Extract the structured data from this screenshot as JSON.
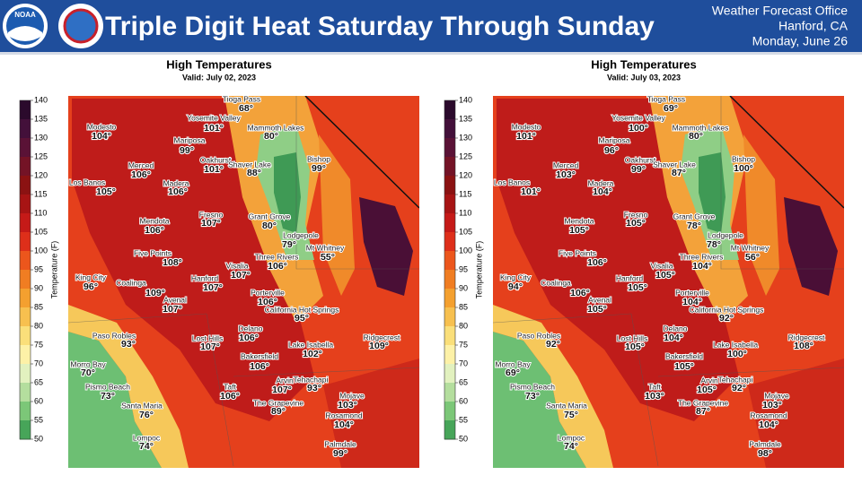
{
  "header": {
    "title": "Triple Digit Heat Saturday Through Sunday",
    "logo_text": "NOAA",
    "office": [
      "Weather Forecast Office",
      "Hanford, CA",
      "Monday, June 26"
    ]
  },
  "panels": [
    {
      "title": "High Temperatures",
      "valid": "Valid: July 02, 2023",
      "colorbar": {
        "label": "Temperature (F)",
        "ticks": [
          140,
          135,
          130,
          125,
          120,
          115,
          110,
          105,
          100,
          95,
          90,
          85,
          80,
          75,
          70,
          65,
          60,
          55,
          50
        ]
      },
      "cities": [
        {
          "name": "Tioga Pass",
          "temp": "68°"
        },
        {
          "name": "Modesto",
          "temp": "104°"
        },
        {
          "name": "Yosemite Valley",
          "temp": "101°"
        },
        {
          "name": "Mammoth Lakes",
          "temp": "80°"
        },
        {
          "name": "Mariposa",
          "temp": "99°"
        },
        {
          "name": "Oakhurst",
          "temp": "101°"
        },
        {
          "name": "Shaver Lake",
          "temp": "88°"
        },
        {
          "name": "Bishop",
          "temp": "99°"
        },
        {
          "name": "Merced",
          "temp": "106°"
        },
        {
          "name": "Los Banos",
          "temp": "105°"
        },
        {
          "name": "Madera",
          "temp": "106°"
        },
        {
          "name": "Fresno",
          "temp": "107°"
        },
        {
          "name": "Grant Grove",
          "temp": "80°"
        },
        {
          "name": "Mendota",
          "temp": "106°"
        },
        {
          "name": "Lodgepole",
          "temp": "79°"
        },
        {
          "name": "Mt Whitney",
          "temp": "55°"
        },
        {
          "name": "Five Points",
          "temp": "108°"
        },
        {
          "name": "Three Rivers",
          "temp": "106°"
        },
        {
          "name": "King City",
          "temp": "96°"
        },
        {
          "name": "Visalia",
          "temp": "107°"
        },
        {
          "name": "Hanford",
          "temp": "107°"
        },
        {
          "name": "Coalinga",
          "temp": "109°"
        },
        {
          "name": "Porterville",
          "temp": "106°"
        },
        {
          "name": "Avenal",
          "temp": "107°"
        },
        {
          "name": "California Hot Springs",
          "temp": "95°"
        },
        {
          "name": "Paso Robles",
          "temp": "93°"
        },
        {
          "name": "Delano",
          "temp": "106°"
        },
        {
          "name": "Lost Hills",
          "temp": "107°"
        },
        {
          "name": "Lake Isabella",
          "temp": "102°"
        },
        {
          "name": "Ridgecrest",
          "temp": "109°"
        },
        {
          "name": "Bakersfield",
          "temp": "106°"
        },
        {
          "name": "Morro Bay",
          "temp": "70°"
        },
        {
          "name": "Tehachapi",
          "temp": "93°"
        },
        {
          "name": "Arvin",
          "temp": "107°"
        },
        {
          "name": "Pismo Beach",
          "temp": "73°"
        },
        {
          "name": "Taft",
          "temp": "106°"
        },
        {
          "name": "Mojave",
          "temp": "103°"
        },
        {
          "name": "The Grapevine",
          "temp": "89°"
        },
        {
          "name": "Santa Maria",
          "temp": "76°"
        },
        {
          "name": "Rosamond",
          "temp": "104°"
        },
        {
          "name": "Lompoc",
          "temp": "74°"
        },
        {
          "name": "Palmdale",
          "temp": "99°"
        }
      ]
    },
    {
      "title": "High Temperatures",
      "valid": "Valid: July 03, 2023",
      "colorbar": {
        "label": "Temperature (F)",
        "ticks": [
          140,
          135,
          130,
          125,
          120,
          115,
          110,
          105,
          100,
          95,
          90,
          85,
          80,
          75,
          70,
          65,
          60,
          55,
          50
        ]
      },
      "cities": [
        {
          "name": "Tioga Pass",
          "temp": "69°"
        },
        {
          "name": "Modesto",
          "temp": "101°"
        },
        {
          "name": "Yosemite Valley",
          "temp": "100°"
        },
        {
          "name": "Mammoth Lakes",
          "temp": "80°"
        },
        {
          "name": "Mariposa",
          "temp": "96°"
        },
        {
          "name": "Oakhurst",
          "temp": "99°"
        },
        {
          "name": "Shaver Lake",
          "temp": "87°"
        },
        {
          "name": "Bishop",
          "temp": "100°"
        },
        {
          "name": "Merced",
          "temp": "103°"
        },
        {
          "name": "Los Banos",
          "temp": "101°"
        },
        {
          "name": "Madera",
          "temp": "104°"
        },
        {
          "name": "Fresno",
          "temp": "105°"
        },
        {
          "name": "Grant Grove",
          "temp": "78°"
        },
        {
          "name": "Mendota",
          "temp": "105°"
        },
        {
          "name": "Lodgepole",
          "temp": "78°"
        },
        {
          "name": "Mt Whitney",
          "temp": "56°"
        },
        {
          "name": "Five Points",
          "temp": "106°"
        },
        {
          "name": "Three Rivers",
          "temp": "104°"
        },
        {
          "name": "King City",
          "temp": "94°"
        },
        {
          "name": "Visalia",
          "temp": "105°"
        },
        {
          "name": "Hanford",
          "temp": "105°"
        },
        {
          "name": "Coalinga",
          "temp": "106°"
        },
        {
          "name": "Porterville",
          "temp": "104°"
        },
        {
          "name": "Avenal",
          "temp": "105°"
        },
        {
          "name": "California Hot Springs",
          "temp": "92°"
        },
        {
          "name": "Paso Robles",
          "temp": "92°"
        },
        {
          "name": "Delano",
          "temp": "104°"
        },
        {
          "name": "Lost Hills",
          "temp": "105°"
        },
        {
          "name": "Lake Isabella",
          "temp": "100°"
        },
        {
          "name": "Ridgecrest",
          "temp": "108°"
        },
        {
          "name": "Bakersfield",
          "temp": "105°"
        },
        {
          "name": "Morro Bay",
          "temp": "69°"
        },
        {
          "name": "Tehachapi",
          "temp": "92°"
        },
        {
          "name": "Arvin",
          "temp": "105°"
        },
        {
          "name": "Pismo Beach",
          "temp": "73°"
        },
        {
          "name": "Taft",
          "temp": "103°"
        },
        {
          "name": "Mojave",
          "temp": "103°"
        },
        {
          "name": "The Grapevine",
          "temp": "87°"
        },
        {
          "name": "Santa Maria",
          "temp": "75°"
        },
        {
          "name": "Rosamond",
          "temp": "104°"
        },
        {
          "name": "Lompoc",
          "temp": "74°"
        },
        {
          "name": "Palmdale",
          "temp": "98°"
        }
      ]
    }
  ]
}
